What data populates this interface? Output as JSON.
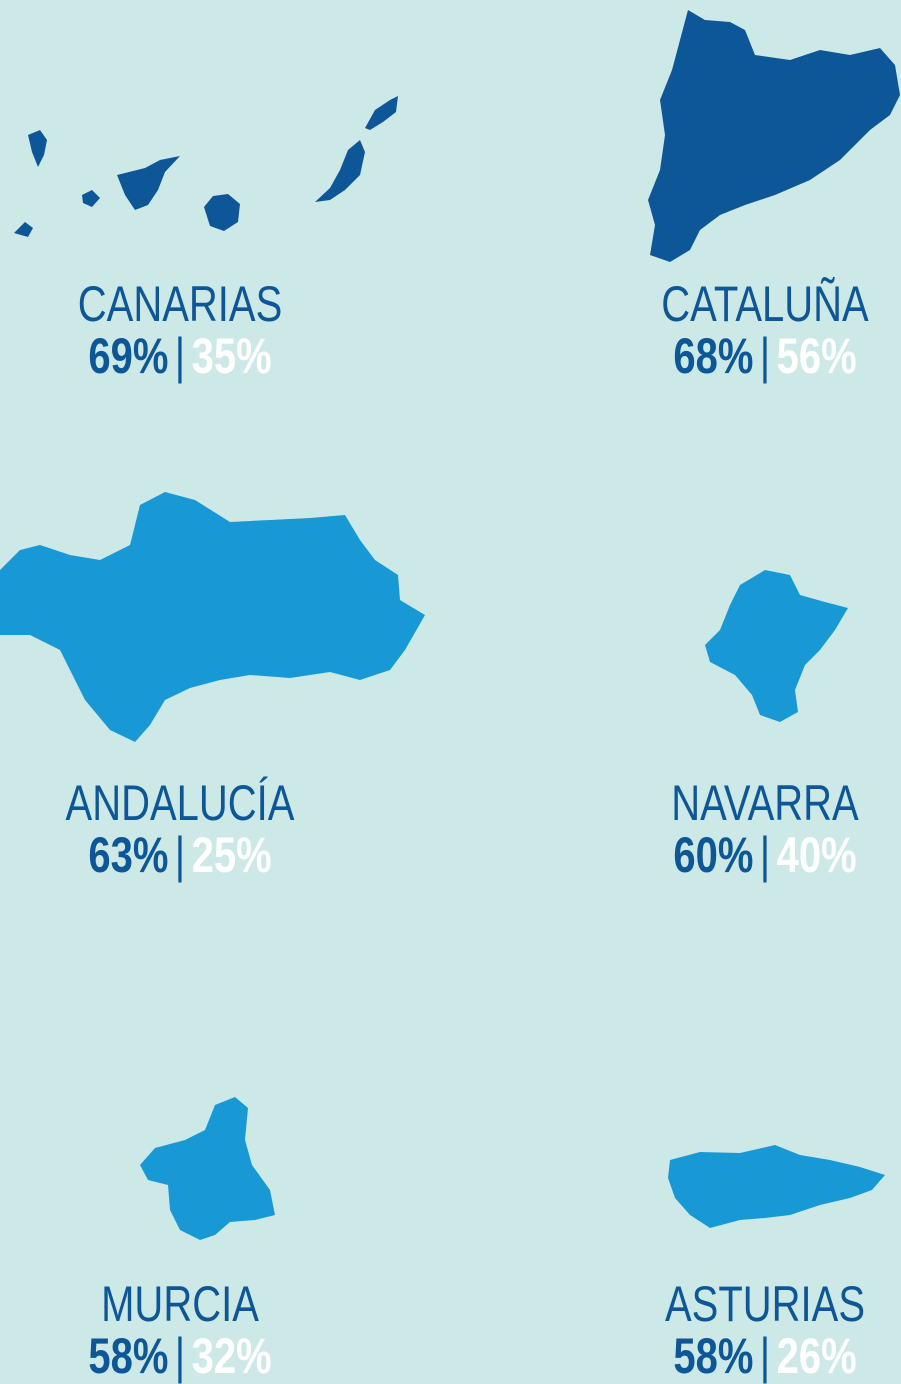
{
  "separator": "|",
  "regions": [
    {
      "name": "CANARIAS",
      "value_a": "69%",
      "value_b": "35%"
    },
    {
      "name": "CATALUÑA",
      "value_a": "68%",
      "value_b": "56%"
    },
    {
      "name": "ANDALUCÍA",
      "value_a": "63%",
      "value_b": "25%"
    },
    {
      "name": "NAVARRA",
      "value_a": "60%",
      "value_b": "40%"
    },
    {
      "name": "MURCIA",
      "value_a": "58%",
      "value_b": "32%"
    },
    {
      "name": "ASTURIAS",
      "value_a": "58%",
      "value_b": "26%"
    }
  ]
}
